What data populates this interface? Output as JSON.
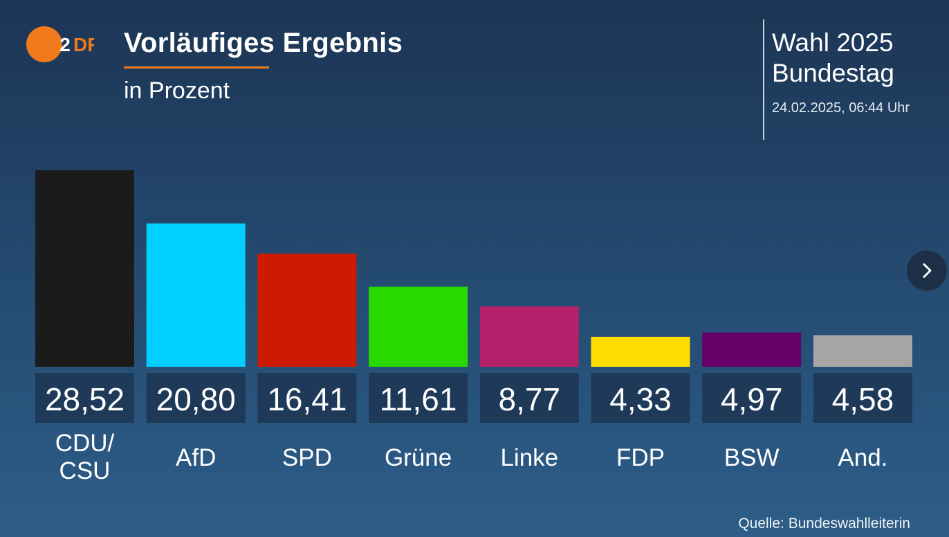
{
  "header": {
    "logo_text": "ZDF",
    "title": "Vorläufiges Ergebnis",
    "subtitle": "in Prozent",
    "side_title_line1": "Wahl 2025",
    "side_title_line2": "Bundestag",
    "date": "24.02.2025, 06:44 Uhr"
  },
  "colors": {
    "logo_orange": "#f07a1c",
    "value_box": "#1f3a58"
  },
  "footer": {
    "source": "Quelle: Bundeswahlleiterin"
  },
  "navigation": {
    "next_icon": "chevron-right-icon"
  },
  "chart_data": {
    "type": "bar",
    "title": "Vorläufiges Ergebnis",
    "subtitle": "in Prozent",
    "categories": [
      [
        "CDU/",
        "CSU"
      ],
      [
        "AfD"
      ],
      [
        "SPD"
      ],
      [
        "Grüne"
      ],
      [
        "Linke"
      ],
      [
        "FDP"
      ],
      [
        "BSW"
      ],
      [
        "And."
      ]
    ],
    "values": [
      28.52,
      20.8,
      16.41,
      11.61,
      8.77,
      4.33,
      4.97,
      4.58
    ],
    "value_labels": [
      "28,52",
      "20,80",
      "16,41",
      "11,61",
      "8,77",
      "4,33",
      "4,97",
      "4,58"
    ],
    "colors": [
      "#1b1b1b",
      "#00cfff",
      "#cc1b00",
      "#28d800",
      "#b5206b",
      "#ffdd00",
      "#650068",
      "#a6a6a6"
    ],
    "ylim": [
      0,
      28.52
    ],
    "grid": false
  }
}
